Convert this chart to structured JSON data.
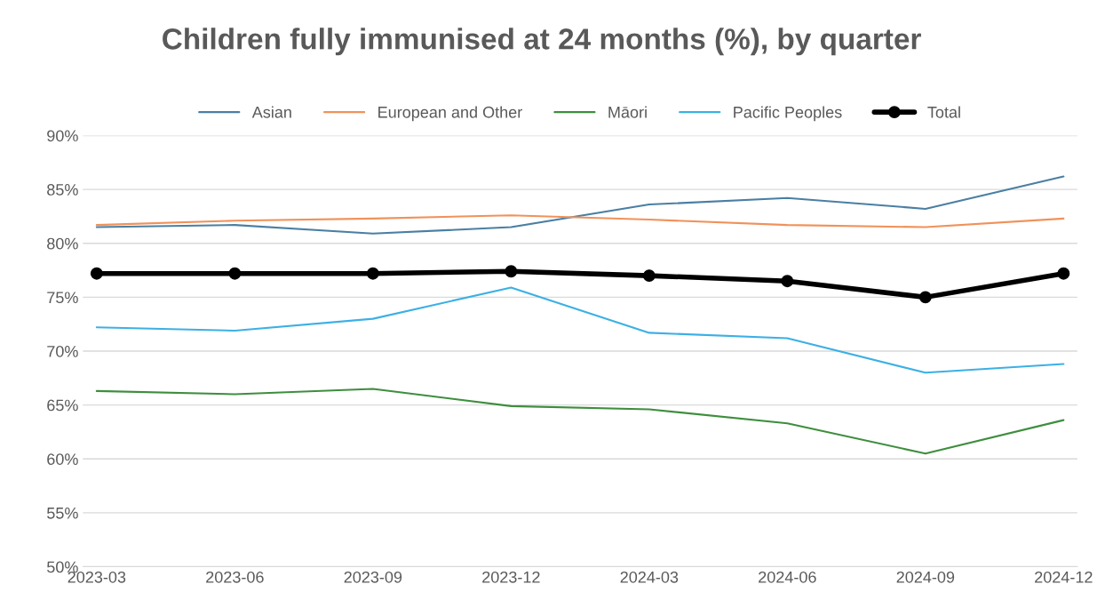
{
  "chart_data": {
    "type": "line",
    "title": "Children fully immunised at 24 months (%), by quarter",
    "categories": [
      "2023-03",
      "2023-06",
      "2023-09",
      "2023-12",
      "2024-03",
      "2024-06",
      "2024-09",
      "2024-12"
    ],
    "series": [
      {
        "name": "Asian",
        "color": "#4a7fa3",
        "values": [
          81.5,
          81.7,
          80.9,
          81.5,
          83.6,
          84.2,
          83.2,
          86.2
        ]
      },
      {
        "name": "European and Other",
        "color": "#f0925a",
        "values": [
          81.7,
          82.1,
          82.3,
          82.6,
          82.2,
          81.7,
          81.5,
          82.3
        ]
      },
      {
        "name": "Māori",
        "color": "#3e8e3e",
        "values": [
          66.3,
          66.0,
          66.5,
          64.9,
          64.6,
          63.3,
          60.5,
          63.6
        ]
      },
      {
        "name": "Pacific Peoples",
        "color": "#3cb0e4",
        "values": [
          72.2,
          71.9,
          73.0,
          75.9,
          71.7,
          71.2,
          68.0,
          68.8
        ]
      },
      {
        "name": "Total",
        "color": "#000000",
        "marker": "circle",
        "values": [
          77.2,
          77.2,
          77.2,
          77.4,
          77.0,
          76.5,
          75.0,
          77.2
        ]
      }
    ],
    "ylim": [
      50,
      90
    ],
    "yticks": [
      {
        "value": 50,
        "label": "50%"
      },
      {
        "value": 55,
        "label": "55%"
      },
      {
        "value": 60,
        "label": "60%"
      },
      {
        "value": 65,
        "label": "65%"
      },
      {
        "value": 70,
        "label": "70%"
      },
      {
        "value": 75,
        "label": "75%"
      },
      {
        "value": 80,
        "label": "80%"
      },
      {
        "value": 85,
        "label": "85%"
      },
      {
        "value": 90,
        "label": "90%"
      }
    ],
    "grid": "y",
    "legend": "top"
  }
}
